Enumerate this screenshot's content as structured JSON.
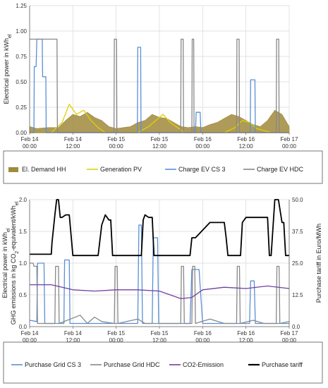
{
  "chart_data": [
    {
      "type": "line",
      "ylabel": "Electrical power in kWh",
      "ylabel_sub": "el",
      "ylim": [
        0,
        1.25
      ],
      "yticks": [
        "0.00",
        "0.25",
        "0.50",
        "0.75",
        "1.00",
        "1.25"
      ],
      "xlim": [
        0,
        72
      ],
      "xticks": [
        {
          "x": 0,
          "l1": "Feb 14",
          "l2": "00:00"
        },
        {
          "x": 12,
          "l1": "Feb 14",
          "l2": "12:00"
        },
        {
          "x": 24,
          "l1": "Feb 15",
          "l2": "00:00"
        },
        {
          "x": 36,
          "l1": "Feb 15",
          "l2": "12:00"
        },
        {
          "x": 48,
          "l1": "Feb 16",
          "l2": "00:00"
        },
        {
          "x": 60,
          "l1": "Feb 16",
          "l2": "12:00"
        },
        {
          "x": 72,
          "l1": "Feb 17",
          "l2": "00:00"
        }
      ],
      "grid": true,
      "legend_position": "bottom",
      "series": [
        {
          "name": "El. Demand HH",
          "color": "#a08a3c",
          "style": "area",
          "x": [
            0,
            2,
            5,
            8,
            10,
            12,
            14,
            16,
            18,
            20,
            22,
            24,
            26,
            28,
            30,
            32,
            34,
            36,
            38,
            40,
            42,
            44,
            46,
            48,
            50,
            52,
            54,
            56,
            58,
            60,
            62,
            64,
            66,
            68,
            70,
            72
          ],
          "y": [
            0.06,
            0.04,
            0.05,
            0.05,
            0.12,
            0.18,
            0.16,
            0.2,
            0.15,
            0.12,
            0.06,
            0.04,
            0.05,
            0.06,
            0.1,
            0.12,
            0.18,
            0.15,
            0.14,
            0.1,
            0.06,
            0.05,
            0.06,
            0.05,
            0.08,
            0.1,
            0.14,
            0.18,
            0.16,
            0.12,
            0.08,
            0.06,
            0.12,
            0.22,
            0.18,
            0.06
          ]
        },
        {
          "name": "Generation PV",
          "color": "#e0d000",
          "style": "line",
          "x": [
            0,
            6,
            9,
            11,
            13,
            15,
            17,
            19,
            21,
            24,
            30,
            33,
            35,
            37,
            39,
            41,
            43,
            48,
            54,
            57,
            59,
            61,
            63,
            65,
            67,
            72
          ],
          "y": [
            0,
            0,
            0.1,
            0.28,
            0.18,
            0.22,
            0.12,
            0.05,
            0,
            0,
            0,
            0.06,
            0.12,
            0.18,
            0.1,
            0.05,
            0,
            0,
            0,
            0.05,
            0.12,
            0.1,
            0.04,
            0.02,
            0,
            0
          ]
        },
        {
          "name": "Charge EV CS 3",
          "color": "#5b8fd6",
          "style": "line",
          "x": [
            0,
            1.2,
            1.3,
            1.8,
            2.0,
            3.5,
            3.6,
            4.5,
            4.6,
            29.9,
            30.0,
            30.8,
            30.9,
            46.0,
            46.2,
            47.3,
            47.5,
            61.2,
            61.3,
            62.5,
            62.6,
            72
          ],
          "y": [
            0,
            0,
            0.65,
            0.65,
            0.92,
            0.92,
            0.55,
            0.55,
            0,
            0,
            0.84,
            0.84,
            0,
            0,
            0.2,
            0.2,
            0,
            0,
            0.52,
            0.52,
            0,
            0
          ]
        },
        {
          "name": "Charge EV HDC",
          "color": "#888888",
          "style": "line",
          "x": [
            0,
            1.0,
            1.1,
            6.9,
            7.0,
            7.6,
            7.7,
            23.4,
            23.5,
            24.1,
            24.2,
            41.9,
            42.0,
            42.6,
            42.7,
            45.0,
            45.1,
            45.5,
            45.6,
            57.4,
            57.5,
            58.1,
            58.2,
            68.4,
            68.5,
            69.1,
            69.2,
            72
          ],
          "y": [
            0.92,
            0.92,
            0.92,
            0.92,
            0.92,
            0.92,
            0,
            0,
            0.92,
            0.92,
            0,
            0,
            0.92,
            0.92,
            0,
            0,
            0.92,
            0.92,
            0,
            0,
            0.92,
            0.92,
            0,
            0,
            0.92,
            0.92,
            0,
            0
          ]
        }
      ]
    },
    {
      "type": "line",
      "ylabel": "Electrical power in kWh",
      "ylabel_sub": "el",
      "ylabel2": "GHG emissions in kg CO",
      "ylabel2_sub": "2",
      "ylabel2_tail": "-equivalent/kWh",
      "ylabel2_tail_sub": "el",
      "ylim": [
        0,
        2.0
      ],
      "yticks": [
        "0.0",
        "0.5",
        "1.0",
        "1.5",
        "2.0"
      ],
      "ylabel_right": "Purchase tariff in Euro/MWh",
      "ylim_right": [
        0,
        50.0
      ],
      "yticks_right": [
        "0.0",
        "12.5",
        "25.0",
        "37.5",
        "50.0"
      ],
      "xlim": [
        0,
        72
      ],
      "xticks": [
        {
          "x": 0,
          "l1": "Feb 14",
          "l2": "00:00"
        },
        {
          "x": 12,
          "l1": "Feb 14",
          "l2": "12:00"
        },
        {
          "x": 24,
          "l1": "Feb 15",
          "l2": "00:00"
        },
        {
          "x": 36,
          "l1": "Feb 15",
          "l2": "12:00"
        },
        {
          "x": 48,
          "l1": "Feb 16",
          "l2": "00:00"
        },
        {
          "x": 60,
          "l1": "Feb 16",
          "l2": "12:00"
        },
        {
          "x": 72,
          "l1": "Feb 17",
          "l2": "00:00"
        }
      ],
      "grid": true,
      "legend_position": "bottom",
      "series": [
        {
          "name": "Purchase Grid CS 3",
          "color": "#5b8fd6",
          "axis": "left",
          "x": [
            0,
            2,
            2.2,
            4,
            4.2,
            8,
            9.5,
            9.7,
            11,
            11.2,
            24,
            30,
            30.3,
            31,
            31.3,
            34,
            34.3,
            35.5,
            35.8,
            36.5,
            37,
            40,
            44.5,
            45,
            47,
            48,
            52,
            60,
            61,
            61.3,
            62.3,
            62.6,
            72
          ],
          "y": [
            0.1,
            0.08,
            1.0,
            1.0,
            0.05,
            0.05,
            0.05,
            1.05,
            1.05,
            0.05,
            0.05,
            0.05,
            1.6,
            1.6,
            0.05,
            0.05,
            1.4,
            1.4,
            0.05,
            0.05,
            0.05,
            0.05,
            0.05,
            0.9,
            0.9,
            0.05,
            0.05,
            0.05,
            0.05,
            0.72,
            0.72,
            0.05,
            0.05
          ]
        },
        {
          "name": "Purchase Grid HDC",
          "color": "#888888",
          "axis": "left",
          "x": [
            0,
            1,
            1.2,
            2,
            2.2,
            3,
            3.2,
            7,
            7.2,
            8,
            8.2,
            14,
            16,
            18,
            20,
            23.5,
            23.7,
            24.3,
            24.5,
            30,
            32,
            36,
            41.9,
            42.1,
            42.7,
            42.9,
            45,
            45.2,
            45.8,
            46,
            50,
            54,
            57.4,
            57.6,
            58.2,
            58.4,
            62,
            65,
            68.4,
            68.6,
            69.2,
            69.4,
            72
          ],
          "y": [
            1.0,
            1.0,
            0.95,
            0.95,
            0.05,
            0.05,
            0.05,
            0.05,
            0.95,
            0.95,
            0.05,
            0.18,
            0.05,
            0.15,
            0.08,
            0.05,
            0.95,
            0.95,
            0.05,
            0.12,
            0.05,
            0.05,
            0.05,
            0.95,
            0.95,
            0.05,
            0.05,
            0.95,
            0.95,
            0.05,
            0.12,
            0.05,
            0.05,
            0.95,
            0.95,
            0.05,
            0.1,
            0.05,
            0.05,
            0.95,
            0.95,
            0.05,
            0.08
          ]
        },
        {
          "name": "CO2-Emission",
          "color": "#7040a0",
          "axis": "left",
          "x": [
            0,
            6,
            12,
            18,
            24,
            30,
            36,
            42,
            45,
            48,
            54,
            60,
            66,
            72
          ],
          "y": [
            0.66,
            0.66,
            0.58,
            0.56,
            0.58,
            0.58,
            0.56,
            0.44,
            0.46,
            0.58,
            0.62,
            0.6,
            0.64,
            0.6
          ]
        },
        {
          "name": "Purchase tariff",
          "color": "#000000",
          "axis": "right",
          "x": [
            0,
            6,
            6.2,
            7,
            7.5,
            8,
            8.5,
            9,
            10,
            11,
            12,
            12.5,
            13,
            14,
            18,
            19,
            20,
            21,
            22,
            22.5,
            23,
            24,
            30,
            31,
            31.5,
            32,
            33,
            34,
            34.5,
            35,
            36,
            42,
            44,
            44.5,
            45,
            46,
            50,
            54,
            54.5,
            55,
            58,
            58.5,
            59,
            60,
            66,
            66.5,
            67,
            68,
            69,
            70,
            70.5,
            71,
            72
          ],
          "y": [
            28.5,
            28.5,
            33,
            44,
            50,
            50,
            43,
            43,
            44,
            44,
            28,
            28,
            28,
            28,
            28,
            28,
            40,
            44,
            42,
            42,
            28,
            28,
            28,
            28,
            42,
            44,
            43,
            43,
            28,
            28,
            28,
            28,
            28,
            28,
            35,
            35,
            41,
            41,
            35,
            28,
            28,
            28,
            41,
            43,
            43,
            28,
            28,
            50,
            50,
            41,
            41,
            28,
            28
          ]
        }
      ]
    }
  ]
}
